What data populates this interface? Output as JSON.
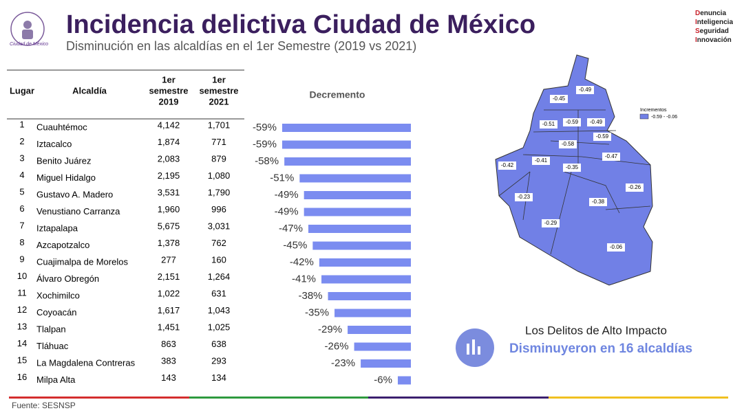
{
  "header": {
    "title": "Incidencia delictiva Ciudad de México",
    "subtitle": "Disminución en las alcaldías en el 1er Semestre (2019 vs 2021)",
    "logo_text": "Ciudad de México",
    "brand": [
      "Denuncia",
      "Inteligencia",
      "Seguridad",
      "Innovación"
    ]
  },
  "table": {
    "columns": [
      [
        "Lugar"
      ],
      [
        "Alcaldía"
      ],
      [
        "1er",
        "semestre",
        "2019"
      ],
      [
        "1er",
        "semestre",
        "2021"
      ]
    ],
    "rows": [
      [
        "1",
        "Cuauhtémoc",
        "4,142",
        "1,701"
      ],
      [
        "2",
        "Iztacalco",
        "1,874",
        "771"
      ],
      [
        "3",
        "Benito Juárez",
        "2,083",
        "879"
      ],
      [
        "4",
        "Miguel Hidalgo",
        "2,195",
        "1,080"
      ],
      [
        "5",
        "Gustavo A. Madero",
        "3,531",
        "1,790"
      ],
      [
        "6",
        "Venustiano Carranza",
        "1,960",
        "996"
      ],
      [
        "7",
        "Iztapalapa",
        "5,675",
        "3,031"
      ],
      [
        "8",
        "Azcapotzalco",
        "1,378",
        "762"
      ],
      [
        "9",
        "Cuajimalpa de Morelos",
        "277",
        "160"
      ],
      [
        "10",
        "Álvaro Obregón",
        "2,151",
        "1,264"
      ],
      [
        "11",
        "Xochimilco",
        "1,022",
        "631"
      ],
      [
        "12",
        "Coyoacán",
        "1,617",
        "1,043"
      ],
      [
        "13",
        "Tlalpan",
        "1,451",
        "1,025"
      ],
      [
        "14",
        "Tláhuac",
        "863",
        "638"
      ],
      [
        "15",
        "La Magdalena Contreras",
        "383",
        "293"
      ],
      [
        "16",
        "Milpa Alta",
        "143",
        "134"
      ]
    ]
  },
  "bars": {
    "title": "Decremento",
    "color": "#7b8cf0",
    "values": [
      -59,
      -59,
      -58,
      -51,
      -49,
      -49,
      -47,
      -45,
      -42,
      -41,
      -38,
      -35,
      -29,
      -26,
      -23,
      -6
    ],
    "value_labels": [
      "-59%",
      "-59%",
      "-58%",
      "-51%",
      "-49%",
      "-49%",
      "-47%",
      "-45%",
      "-42%",
      "-41%",
      "-38%",
      "-35%",
      "-29%",
      "-26%",
      "-23%",
      "-6%"
    ]
  },
  "map": {
    "color": "#7180e6",
    "labels": [
      "-0.49",
      "-0.45",
      "-0.51",
      "-0.59",
      "-0.49",
      "-0.59",
      "-0.58",
      "-0.42",
      "-0.41",
      "-0.35",
      "-0.47",
      "-0.26",
      "-0.23",
      "-0.38",
      "-0.29",
      "-0.06"
    ],
    "legend_title": "Incrementos",
    "legend_item": "-0.59 - -0.06"
  },
  "callout": {
    "line1": "Los Delitos de Alto Impacto",
    "line2": "Disminuyeron en 16 alcaldías"
  },
  "footer": {
    "source": "Fuente: SESNSP"
  }
}
